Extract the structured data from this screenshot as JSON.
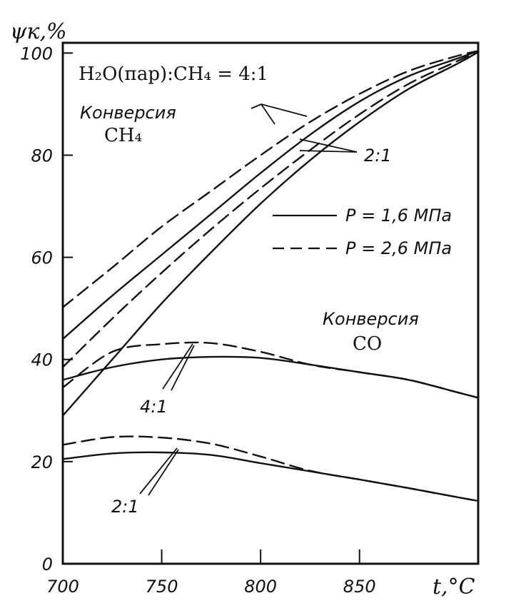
{
  "chart_data": {
    "type": "line",
    "ylabel": "ψк,%",
    "xlabel": "t,°C",
    "xlim": [
      700,
      910
    ],
    "ylim": [
      0,
      102
    ],
    "x_ticks": [
      700,
      750,
      800,
      850
    ],
    "x_tick_labels": [
      "700",
      "750",
      "800",
      "850"
    ],
    "y_ticks": [
      0,
      20,
      40,
      60,
      80,
      100
    ],
    "y_tick_labels": [
      "0",
      "20",
      "40",
      "60",
      "80",
      "100"
    ],
    "grid": false,
    "legend": [
      {
        "label": "P = 1,6 МПа",
        "dash": "solid"
      },
      {
        "label": "P = 2,6 МПа",
        "dash": "dashed"
      }
    ],
    "annotations": {
      "ratio_title": "H₂O(пар):CH₄ = 4:1",
      "ch4_word": "Конверсия",
      "ch4_formula": "CH₄",
      "co_word": "Конверсия",
      "co_formula": "CO",
      "ch4_ratio_21": "2:1",
      "co_ratio_41": "4:1",
      "co_ratio_21": "2:1"
    },
    "series": [
      {
        "x": [
          700,
          725,
          750,
          775,
          800,
          825,
          850,
          875,
          900,
          910
        ],
        "y": [
          50.2,
          58,
          66,
          73,
          80,
          86.5,
          92,
          96.5,
          99.5,
          100.4
        ],
        "dash": "dashed"
      },
      {
        "x": [
          700,
          725,
          750,
          775,
          800,
          825,
          850,
          875,
          900,
          910
        ],
        "y": [
          44,
          52.5,
          60.5,
          68.5,
          76.5,
          84,
          90.5,
          95.5,
          99,
          100.4
        ],
        "dash": "solid"
      },
      {
        "x": [
          700,
          725,
          750,
          775,
          800,
          825,
          850,
          875,
          900,
          910
        ],
        "y": [
          38.5,
          48,
          57,
          65.5,
          73.5,
          81,
          88,
          94,
          98.5,
          100.3
        ],
        "dash": "dashed"
      },
      {
        "x": [
          700,
          725,
          750,
          775,
          800,
          825,
          850,
          875,
          900,
          910
        ],
        "y": [
          29,
          40,
          51,
          61,
          70.5,
          79,
          86.5,
          93,
          98,
          100.2
        ],
        "dash": "solid"
      },
      {
        "x": [
          700,
          725,
          750,
          775,
          800,
          825,
          850,
          875,
          900,
          910
        ],
        "y": [
          34.5,
          41.5,
          43,
          43.2,
          41.5,
          39,
          37.5,
          36,
          33.5,
          32.5
        ],
        "dash": "dashed"
      },
      {
        "x": [
          700,
          725,
          750,
          775,
          800,
          825,
          850,
          875,
          900,
          910
        ],
        "y": [
          36,
          38.5,
          40,
          40.5,
          40.3,
          39,
          37.5,
          36,
          33.5,
          32.5
        ],
        "dash": "solid"
      },
      {
        "x": [
          700,
          725,
          750,
          775,
          800,
          825,
          850,
          875,
          900,
          910
        ],
        "y": [
          23.3,
          24.8,
          24.7,
          23.5,
          21,
          18.2,
          16.5,
          14.8,
          13,
          12.3
        ],
        "dash": "dashed"
      },
      {
        "x": [
          700,
          725,
          750,
          775,
          800,
          825,
          850,
          875,
          900,
          910
        ],
        "y": [
          20.5,
          21.6,
          21.8,
          21.3,
          19.7,
          18.1,
          16.5,
          14.8,
          13,
          12.3
        ],
        "dash": "solid"
      }
    ]
  }
}
